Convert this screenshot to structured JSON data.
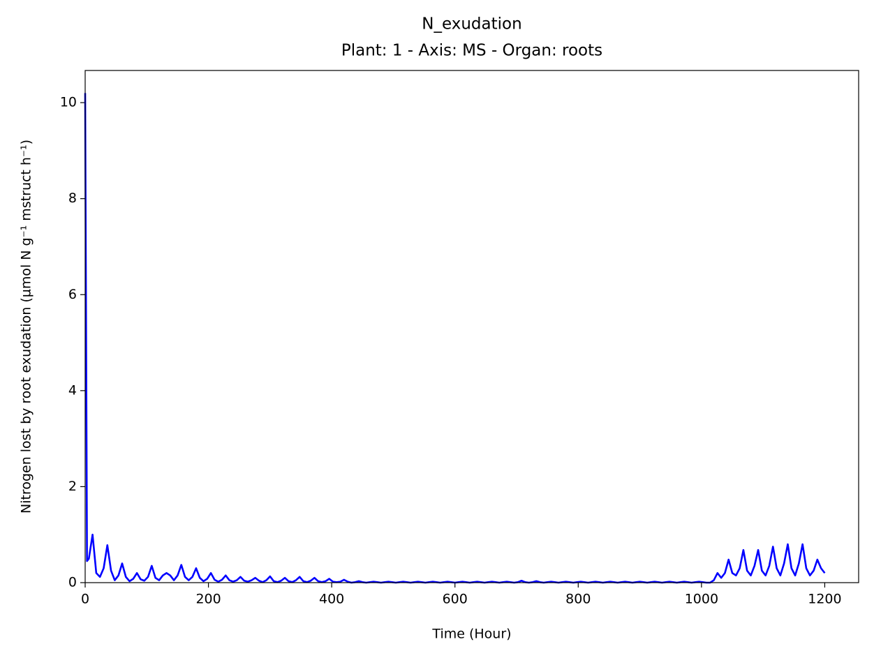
{
  "chart_data": {
    "type": "line",
    "title": "N_exudation",
    "subtitle": "Plant: 1 - Axis: MS - Organ: roots",
    "xlabel": "Time (Hour)",
    "ylabel": "Nitrogen lost by root exudation (µmol N g⁻¹ mstruct h⁻¹)",
    "color": "#0000ff",
    "xlim": [
      0,
      1255
    ],
    "ylim": [
      0,
      10.67
    ],
    "xticks": [
      0,
      200,
      400,
      600,
      800,
      1000,
      1200
    ],
    "yticks": [
      0,
      2,
      4,
      6,
      8,
      10
    ],
    "x": [
      0,
      3,
      6,
      12,
      18,
      24,
      30,
      36,
      42,
      48,
      54,
      60,
      66,
      72,
      78,
      84,
      90,
      96,
      102,
      108,
      114,
      120,
      126,
      132,
      138,
      144,
      150,
      156,
      162,
      168,
      174,
      180,
      186,
      192,
      198,
      204,
      210,
      216,
      222,
      228,
      234,
      240,
      246,
      252,
      258,
      264,
      270,
      276,
      282,
      288,
      294,
      300,
      306,
      312,
      318,
      324,
      330,
      336,
      342,
      348,
      354,
      360,
      366,
      372,
      378,
      384,
      390,
      396,
      402,
      408,
      414,
      420,
      426,
      432,
      438,
      444,
      450,
      456,
      462,
      468,
      474,
      480,
      486,
      492,
      498,
      504,
      510,
      516,
      522,
      528,
      534,
      540,
      546,
      552,
      558,
      564,
      570,
      576,
      582,
      588,
      594,
      600,
      606,
      612,
      618,
      624,
      630,
      636,
      642,
      648,
      654,
      660,
      666,
      672,
      678,
      684,
      690,
      696,
      702,
      708,
      714,
      720,
      726,
      732,
      738,
      744,
      750,
      756,
      762,
      768,
      774,
      780,
      786,
      792,
      798,
      804,
      810,
      816,
      822,
      828,
      834,
      840,
      846,
      852,
      858,
      864,
      870,
      876,
      882,
      888,
      894,
      900,
      906,
      912,
      918,
      924,
      930,
      936,
      942,
      948,
      954,
      960,
      966,
      972,
      978,
      984,
      990,
      996,
      1002,
      1008,
      1014,
      1020,
      1026,
      1032,
      1038,
      1044,
      1050,
      1056,
      1062,
      1068,
      1074,
      1080,
      1086,
      1092,
      1098,
      1104,
      1110,
      1116,
      1122,
      1128,
      1134,
      1140,
      1146,
      1152,
      1158,
      1164,
      1170,
      1176,
      1182,
      1188,
      1194,
      1200
    ],
    "values": [
      10.2,
      0.45,
      0.5,
      1.0,
      0.2,
      0.12,
      0.3,
      0.78,
      0.25,
      0.05,
      0.15,
      0.4,
      0.12,
      0.03,
      0.08,
      0.2,
      0.07,
      0.04,
      0.12,
      0.35,
      0.1,
      0.05,
      0.15,
      0.2,
      0.15,
      0.05,
      0.15,
      0.37,
      0.12,
      0.05,
      0.12,
      0.3,
      0.1,
      0.03,
      0.08,
      0.2,
      0.06,
      0.02,
      0.06,
      0.15,
      0.05,
      0.02,
      0.05,
      0.12,
      0.04,
      0.02,
      0.05,
      0.1,
      0.04,
      0.01,
      0.05,
      0.13,
      0.03,
      0.01,
      0.04,
      0.1,
      0.03,
      0.01,
      0.05,
      0.12,
      0.03,
      0.01,
      0.04,
      0.1,
      0.03,
      0.01,
      0.03,
      0.08,
      0.02,
      0.01,
      0.02,
      0.06,
      0.02,
      0,
      0.01,
      0.03,
      0.01,
      0,
      0.01,
      0.02,
      0.01,
      0,
      0.01,
      0.02,
      0.01,
      0,
      0.01,
      0.02,
      0.01,
      0,
      0.01,
      0.02,
      0.01,
      0,
      0.01,
      0.02,
      0.01,
      0,
      0.01,
      0.02,
      0.01,
      0,
      0.01,
      0.02,
      0.01,
      0,
      0.01,
      0.02,
      0.01,
      0,
      0.01,
      0.02,
      0.01,
      0,
      0.01,
      0.02,
      0.01,
      0,
      0.01,
      0.04,
      0.01,
      0,
      0.01,
      0.03,
      0.01,
      0,
      0.01,
      0.02,
      0.01,
      0,
      0.01,
      0.02,
      0.01,
      0,
      0.01,
      0.02,
      0.01,
      0,
      0.01,
      0.02,
      0.01,
      0,
      0.01,
      0.02,
      0.01,
      0,
      0.01,
      0.02,
      0.01,
      0,
      0.01,
      0.02,
      0.01,
      0,
      0.01,
      0.02,
      0.01,
      0,
      0.01,
      0.02,
      0.01,
      0,
      0.01,
      0.02,
      0.01,
      0,
      0.01,
      0.02,
      0.01,
      0,
      0,
      0.05,
      0.2,
      0.1,
      0.2,
      0.48,
      0.2,
      0.15,
      0.3,
      0.68,
      0.25,
      0.15,
      0.35,
      0.68,
      0.25,
      0.15,
      0.35,
      0.75,
      0.3,
      0.15,
      0.4,
      0.8,
      0.3,
      0.15,
      0.4,
      0.8,
      0.3,
      0.15,
      0.25,
      0.48,
      0.3,
      0.2
    ]
  }
}
